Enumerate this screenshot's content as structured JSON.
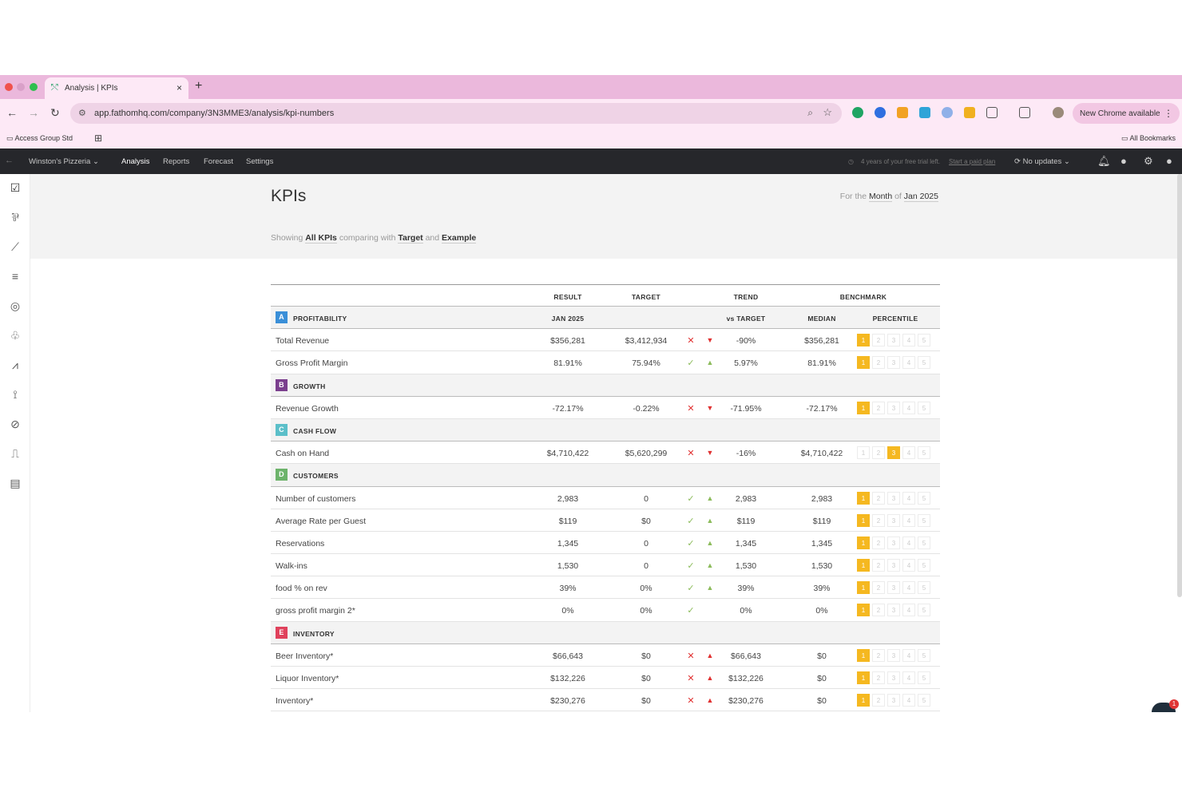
{
  "browser": {
    "tab_title": "Analysis | KPIs",
    "url": "app.fathomhq.com/company/3N3MME3/analysis/kpi-numbers",
    "update_label": "New Chrome available",
    "bookmark_left": "Access Group Std",
    "bookmark_right": "All Bookmarks",
    "colors": {
      "tabbar": "#ebb8dc",
      "toolbar": "#fde9f6"
    }
  },
  "app": {
    "company": "Winston's Pizzeria",
    "nav": [
      "Analysis",
      "Reports",
      "Forecast",
      "Settings"
    ],
    "trial_text": "4 years of your free trial left.",
    "trial_link": "Start a paid plan",
    "updates": "No updates"
  },
  "page": {
    "title": "KPIs",
    "period_prefix": "For the",
    "period_unit": "Month",
    "period_of": "of",
    "period_value": "Jan 2025",
    "showing_prefix": "Showing",
    "showing_value": "All KPIs",
    "comparing": "comparing with",
    "compare_a": "Target",
    "and": "and",
    "compare_b": "Example"
  },
  "table": {
    "headers": {
      "result": "RESULT",
      "target": "TARGET",
      "trend": "TREND",
      "benchmark": "BENCHMARK",
      "result_sub": "JAN 2025",
      "trend_sub": "vs TARGET",
      "median": "MEDIAN",
      "percentile": "PERCENTILE"
    },
    "sections": [
      {
        "letter": "A",
        "label": "PROFITABILITY",
        "color": "#3a8fd8",
        "rows": [
          {
            "name": "Total Revenue",
            "result": "$356,281",
            "target": "$3,412,934",
            "status": "bad",
            "arrow": "down",
            "trend": "-90%",
            "median": "$356,281",
            "pct": 1
          },
          {
            "name": "Gross Profit Margin",
            "result": "81.91%",
            "target": "75.94%",
            "status": "ok",
            "arrow": "up",
            "trend": "5.97%",
            "median": "81.91%",
            "pct": 1
          }
        ]
      },
      {
        "letter": "B",
        "label": "GROWTH",
        "color": "#7b3f8e",
        "rows": [
          {
            "name": "Revenue Growth",
            "result": "-72.17%",
            "target": "-0.22%",
            "status": "bad",
            "arrow": "down",
            "trend": "-71.95%",
            "median": "-72.17%",
            "pct": 1
          }
        ]
      },
      {
        "letter": "C",
        "label": "CASH FLOW",
        "color": "#5bbfc9",
        "rows": [
          {
            "name": "Cash on Hand",
            "result": "$4,710,422",
            "target": "$5,620,299",
            "status": "bad",
            "arrow": "down",
            "trend": "-16%",
            "median": "$4,710,422",
            "pct": 3
          }
        ]
      },
      {
        "letter": "D",
        "label": "CUSTOMERS",
        "color": "#6db36b",
        "rows": [
          {
            "name": "Number of customers",
            "result": "2,983",
            "target": "0",
            "status": "ok",
            "arrow": "up",
            "trend": "2,983",
            "median": "2,983",
            "pct": 1
          },
          {
            "name": "Average Rate per Guest",
            "result": "$119",
            "target": "$0",
            "status": "ok",
            "arrow": "up",
            "trend": "$119",
            "median": "$119",
            "pct": 1
          },
          {
            "name": "Reservations",
            "result": "1,345",
            "target": "0",
            "status": "ok",
            "arrow": "up",
            "trend": "1,345",
            "median": "1,345",
            "pct": 1
          },
          {
            "name": "Walk-ins",
            "result": "1,530",
            "target": "0",
            "status": "ok",
            "arrow": "up",
            "trend": "1,530",
            "median": "1,530",
            "pct": 1
          },
          {
            "name": "food % on rev",
            "result": "39%",
            "target": "0%",
            "status": "ok",
            "arrow": "up",
            "trend": "39%",
            "median": "39%",
            "pct": 1
          },
          {
            "name": "gross profit margin 2*",
            "result": "0%",
            "target": "0%",
            "status": "ok",
            "arrow": "",
            "trend": "0%",
            "median": "0%",
            "pct": 1
          }
        ]
      },
      {
        "letter": "E",
        "label": "INVENTORY",
        "color": "#e0415c",
        "rows": [
          {
            "name": "Beer Inventory*",
            "result": "$66,643",
            "target": "$0",
            "status": "bad",
            "arrow": "up-red",
            "trend": "$66,643",
            "median": "$0",
            "pct": 1
          },
          {
            "name": "Liquor Inventory*",
            "result": "$132,226",
            "target": "$0",
            "status": "bad",
            "arrow": "up-red",
            "trend": "$132,226",
            "median": "$0",
            "pct": 1
          },
          {
            "name": "Inventory*",
            "result": "$230,276",
            "target": "$0",
            "status": "bad",
            "arrow": "up-red",
            "trend": "$230,276",
            "median": "$0",
            "pct": 1
          }
        ]
      }
    ],
    "percentile_labels": [
      "1",
      "2",
      "3",
      "4",
      "5"
    ]
  },
  "chat_badge": "1",
  "icons": {
    "sidebar": [
      "checklist-icon",
      "kpi-icon",
      "chart-line-icon",
      "bars-icon",
      "radar-icon",
      "plant-icon",
      "trend-icon",
      "telescope-icon",
      "intersect-icon",
      "signal-icon",
      "document-icon"
    ]
  }
}
